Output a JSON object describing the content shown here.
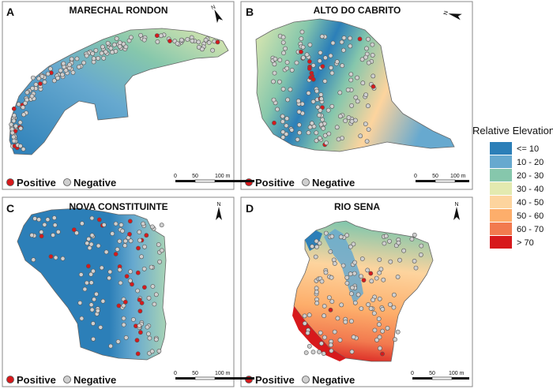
{
  "panels": [
    {
      "letter": "A",
      "title": "MARECHAL RONDON",
      "legend_pos": "Positive",
      "legend_neg": "Negative",
      "scale": {
        "t0": "0",
        "t1": "50",
        "t2": "100 m"
      },
      "north": "N"
    },
    {
      "letter": "B",
      "title": "ALTO DO CABRITO",
      "legend_pos": "Positive",
      "legend_neg": "Negative",
      "scale": {
        "t0": "0",
        "t1": "50",
        "t2": "100 m"
      },
      "north": "N"
    },
    {
      "letter": "C",
      "title": "NOVA CONSTITUINTE",
      "legend_pos": "Positive",
      "legend_neg": "Negative",
      "scale": {
        "t0": "0",
        "t1": "50",
        "t2": "100 m"
      },
      "north": "N"
    },
    {
      "letter": "D",
      "title": "RIO SENA",
      "legend_pos": "Positive",
      "legend_neg": "Negative",
      "scale": {
        "t0": "0",
        "t1": "50",
        "t2": "100 m"
      },
      "north": "N"
    }
  ],
  "elevation_legend": {
    "title": "Relative Elevation",
    "classes": [
      {
        "label": "<= 10",
        "color": "#2c7fb8"
      },
      {
        "label": "10 - 20",
        "color": "#67a9cf"
      },
      {
        "label": "20 - 30",
        "color": "#86c7ac"
      },
      {
        "label": "30 - 40",
        "color": "#e3eab0"
      },
      {
        "label": "40 - 50",
        "color": "#fdd49e"
      },
      {
        "label": "50 - 60",
        "color": "#fdae6b"
      },
      {
        "label": "60 - 70",
        "color": "#f27a4f"
      },
      {
        "label": "> 70",
        "color": "#d7191c"
      }
    ]
  },
  "colors": {
    "positive": "#d7191c",
    "negative": "#cfcfcf",
    "border": "#555555"
  }
}
